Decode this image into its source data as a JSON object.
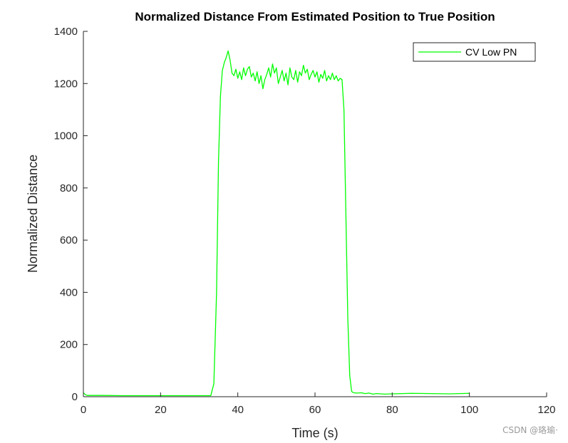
{
  "chart_data": {
    "type": "line",
    "title": "Normalized Distance From Estimated Position to True Position",
    "xlabel": "Time (s)",
    "ylabel": "Normalized Distance",
    "xlim": [
      0,
      120
    ],
    "ylim": [
      0,
      1400
    ],
    "xticks": [
      0,
      20,
      40,
      60,
      80,
      100,
      120
    ],
    "yticks": [
      0,
      200,
      400,
      600,
      800,
      1000,
      1200,
      1400
    ],
    "grid": false,
    "legend": "top-right",
    "series": [
      {
        "name": "CV Low PN",
        "color": "#00ff00",
        "x": [
          0,
          0.5,
          1,
          5,
          10,
          15,
          20,
          25,
          30,
          33,
          33.8,
          34.5,
          35,
          35.5,
          36,
          36.5,
          37,
          37.5,
          38,
          38.5,
          39,
          39.5,
          40,
          40.5,
          41,
          41.5,
          42,
          42.5,
          43,
          43.5,
          44,
          44.5,
          45,
          45.5,
          46,
          46.5,
          47,
          47.5,
          48,
          48.5,
          49,
          49.5,
          50,
          50.5,
          51,
          51.5,
          52,
          52.5,
          53,
          53.5,
          54,
          54.5,
          55,
          55.5,
          56,
          56.5,
          57,
          57.5,
          58,
          58.5,
          59,
          59.5,
          60,
          60.5,
          61,
          61.5,
          62,
          62.5,
          63,
          63.5,
          64,
          64.5,
          65,
          65.5,
          66,
          66.5,
          67,
          67.5,
          68,
          68.5,
          69,
          69.5,
          70,
          71,
          72,
          73,
          74,
          75,
          76,
          78,
          80,
          85,
          90,
          95,
          100
        ],
        "values": [
          15,
          8,
          5,
          5,
          4,
          4,
          4,
          4,
          4,
          4,
          50,
          400,
          900,
          1150,
          1250,
          1280,
          1300,
          1325,
          1290,
          1240,
          1230,
          1255,
          1220,
          1245,
          1215,
          1260,
          1230,
          1255,
          1265,
          1225,
          1240,
          1210,
          1245,
          1200,
          1230,
          1180,
          1215,
          1235,
          1260,
          1225,
          1275,
          1240,
          1260,
          1200,
          1225,
          1250,
          1210,
          1240,
          1195,
          1260,
          1225,
          1215,
          1250,
          1205,
          1245,
          1230,
          1270,
          1240,
          1255,
          1215,
          1235,
          1250,
          1225,
          1245,
          1205,
          1235,
          1220,
          1250,
          1210,
          1230,
          1215,
          1240,
          1215,
          1230,
          1210,
          1220,
          1215,
          1100,
          700,
          300,
          80,
          20,
          15,
          14,
          15,
          12,
          14,
          10,
          12,
          10,
          11,
          13,
          12,
          11,
          13
        ]
      }
    ]
  },
  "watermark": "CSDN @珞瑜·"
}
